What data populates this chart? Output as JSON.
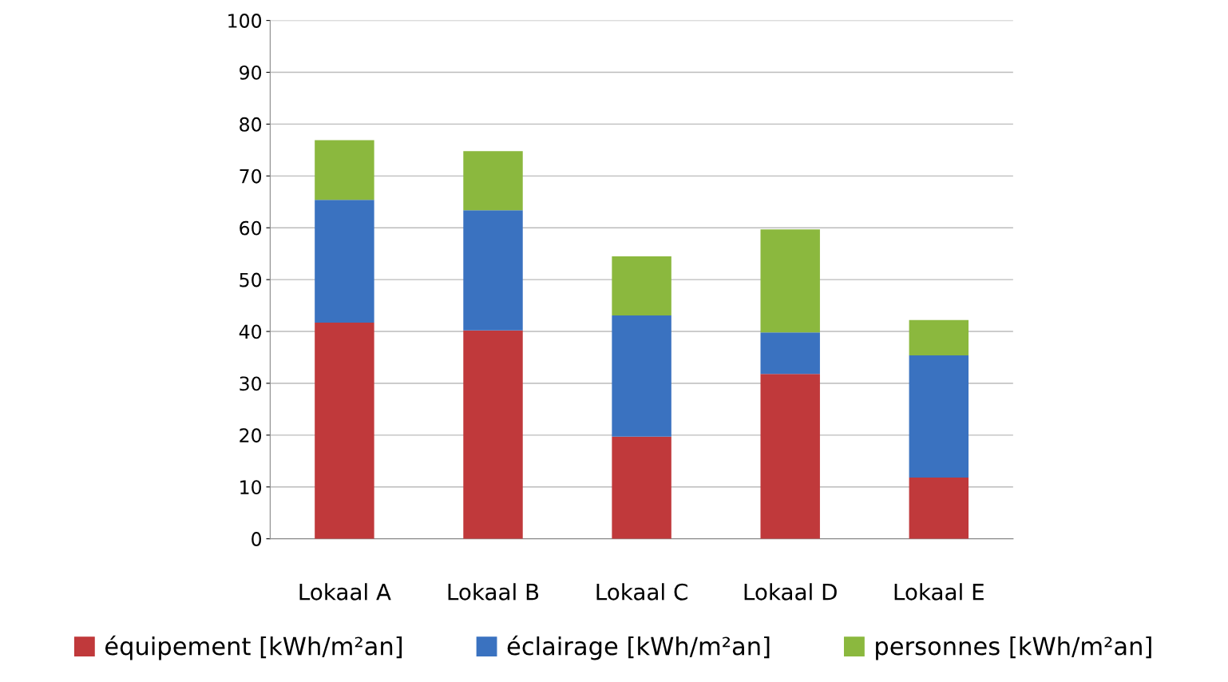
{
  "chart_data": {
    "type": "bar",
    "stacked": true,
    "categories": [
      "Lokaal A",
      "Lokaal B",
      "Lokaal C",
      "Lokaal D",
      "Lokaal E"
    ],
    "series": [
      {
        "name": "équipement [kWh/m²an]",
        "color": "#c0393b",
        "values": [
          41.7,
          40.2,
          19.7,
          31.8,
          11.8
        ]
      },
      {
        "name": "éclairage [kWh/m²an]",
        "color": "#3a72c0",
        "values": [
          23.7,
          23.2,
          23.4,
          8.0,
          23.6
        ]
      },
      {
        "name": "personnes [kWh/m²an]",
        "color": "#8bb83e",
        "values": [
          11.5,
          11.4,
          11.4,
          19.9,
          6.8
        ]
      }
    ],
    "ylim": [
      0,
      100
    ],
    "yticks": [
      0,
      10,
      20,
      30,
      40,
      50,
      60,
      70,
      80,
      90,
      100
    ],
    "grid": "y",
    "legend": "bottom"
  }
}
